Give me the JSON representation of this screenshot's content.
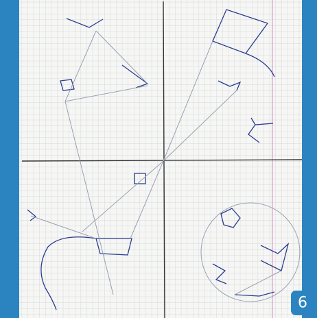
{
  "badge": {
    "label": "6"
  }
}
